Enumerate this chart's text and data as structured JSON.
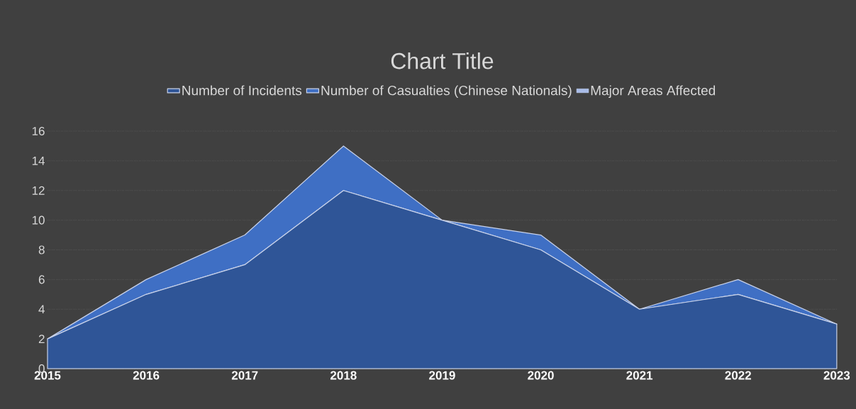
{
  "chart_data": {
    "type": "area",
    "title": "Chart Title",
    "stacked": true,
    "x": [
      2015,
      2016,
      2017,
      2018,
      2019,
      2020,
      2021,
      2022,
      2023
    ],
    "series": [
      {
        "name": "Number of Incidents",
        "color": "#2f5597",
        "values": [
          2,
          5,
          7,
          12,
          10,
          8,
          4,
          5,
          3
        ]
      },
      {
        "name": "Number of Casualties (Chinese Nationals)",
        "color": "#3f6fc4",
        "values": [
          0,
          1,
          2,
          3,
          0,
          1,
          0,
          1,
          0
        ]
      },
      {
        "name": "Major Areas Affected",
        "color": "#a9bce8",
        "values": [
          null,
          null,
          null,
          null,
          null,
          null,
          null,
          null,
          null
        ]
      }
    ],
    "xlim": [
      2015,
      2023
    ],
    "xticks": [
      2015,
      2016,
      2017,
      2018,
      2019,
      2020,
      2021,
      2022,
      2023
    ],
    "ylim": [
      0,
      16
    ],
    "yticks": [
      0,
      2,
      4,
      6,
      8,
      10,
      12,
      14,
      16
    ],
    "grid": "y",
    "legend": "top"
  }
}
